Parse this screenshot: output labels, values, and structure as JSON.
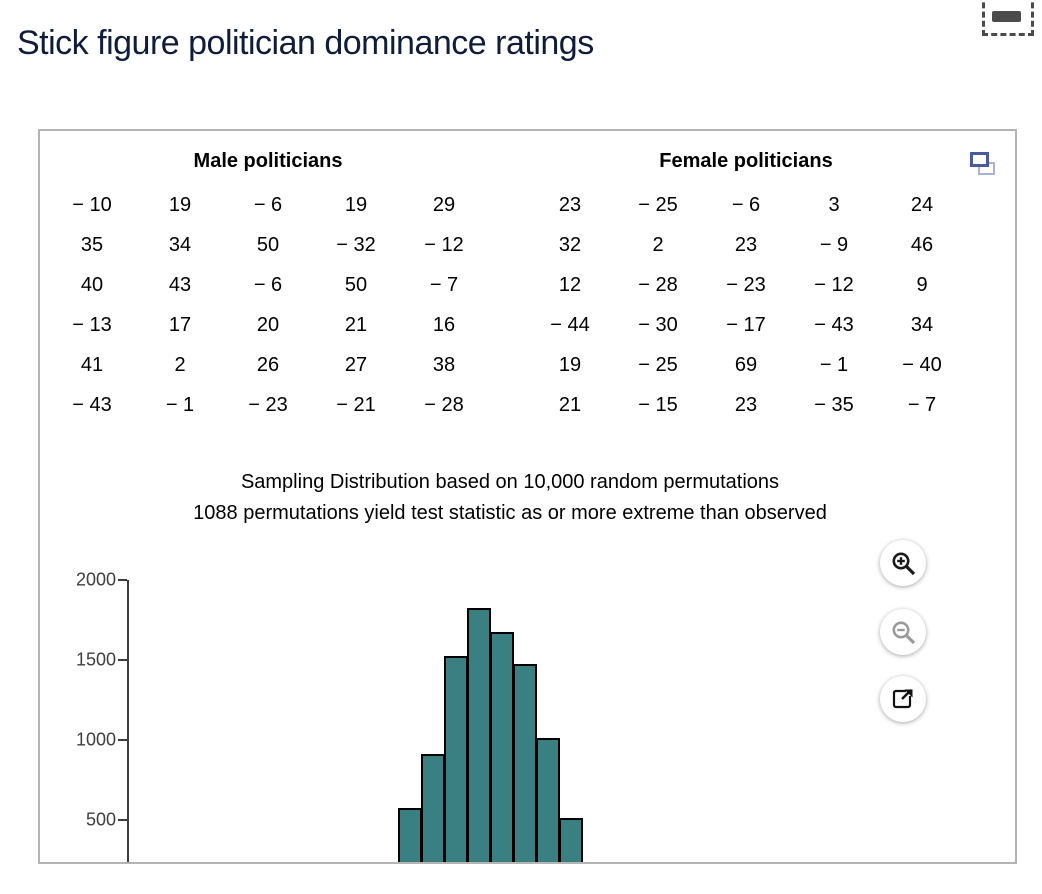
{
  "page": {
    "title": "Stick figure politician dominance ratings"
  },
  "colors": {
    "title_text": "#101d3a",
    "bar_fill": "#3a7f82",
    "bar_stroke": "#000000",
    "panel_border": "#b4b4b4",
    "axis": "#3c3c3c",
    "popout_icon_dark": "#4a5a9e",
    "popout_icon_light": "#aab2d8"
  },
  "tables": {
    "male": {
      "header": "Male politicians",
      "rows": [
        [
          "− 10",
          "19",
          "− 6",
          "19",
          "29"
        ],
        [
          "35",
          "34",
          "50",
          "− 32",
          "− 12"
        ],
        [
          "40",
          "43",
          "− 6",
          "50",
          "− 7"
        ],
        [
          "− 13",
          "17",
          "20",
          "21",
          "16"
        ],
        [
          "41",
          "2",
          "26",
          "27",
          "38"
        ],
        [
          "− 43",
          "− 1",
          "− 23",
          "− 21",
          "− 28"
        ]
      ]
    },
    "female": {
      "header": "Female politicians",
      "rows": [
        [
          "23",
          "− 25",
          "− 6",
          "3",
          "24"
        ],
        [
          "32",
          "2",
          "23",
          "− 9",
          "46"
        ],
        [
          "12",
          "− 28",
          "− 23",
          "− 12",
          "9"
        ],
        [
          "− 44",
          "− 30",
          "− 17",
          "− 43",
          "34"
        ],
        [
          "19",
          "− 25",
          "69",
          "− 1",
          "− 40"
        ],
        [
          "21",
          "− 15",
          "23",
          "− 35",
          "− 7"
        ]
      ]
    }
  },
  "chart_data": {
    "type": "bar",
    "title": "Sampling Distribution based on 10,000 random permutations",
    "subtitle": "1088 permutations yield test statistic as or more extreme than observed",
    "values": [
      560,
      900,
      1510,
      1815,
      1660,
      1460,
      1000,
      500
    ],
    "yticks": [
      2000,
      1500,
      1000,
      500
    ],
    "ylim": [
      0,
      2000
    ],
    "x_axis_visible": false,
    "legend": "none",
    "bar_color": "#3a7f82"
  },
  "icons": {
    "collapse_handle": "collapse-handle",
    "popout": "duplicate-window",
    "zoom_in": "zoom-in",
    "zoom_out": "zoom-out",
    "open_in_new": "open-in-new"
  }
}
